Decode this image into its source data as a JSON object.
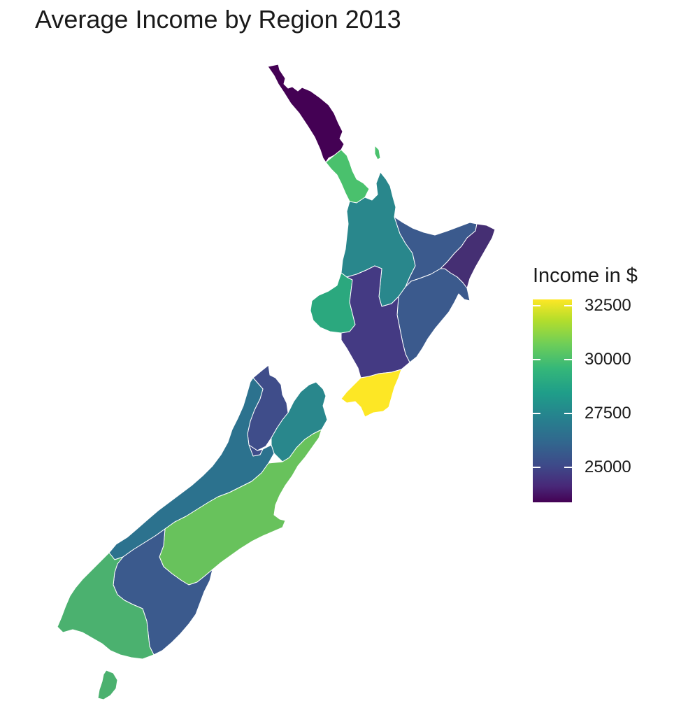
{
  "title": "Average Income by Region 2013",
  "legend": {
    "title": "Income in $",
    "ticks": [
      "32500",
      "30000",
      "27500",
      "25000"
    ],
    "range": [
      23500,
      33000
    ],
    "palette": "viridis"
  },
  "regions_colors": {
    "northland": "#440154",
    "auckland": "#4ac16d",
    "waikato": "#29878c",
    "bay_of_plenty": "#3b5a8d",
    "gisborne": "#452f73",
    "hawkes_bay": "#3b5a8d",
    "taranaki": "#2ba87e",
    "manawatu_wanganui": "#443a83",
    "wellington": "#fde725",
    "tasman": "#3f4d8a",
    "nelson": "#3f4d8a",
    "marlborough": "#29878c",
    "west_coast": "#2c728e",
    "canterbury": "#68c25c",
    "otago": "#3b5a8d",
    "southland": "#4bb16f",
    "stewart_island": "#4bb16f"
  }
}
